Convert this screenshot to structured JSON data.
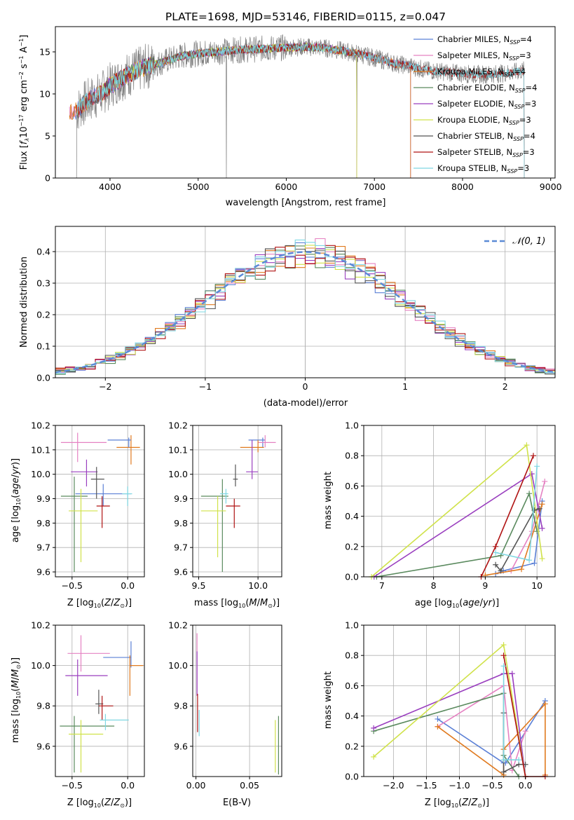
{
  "figure": {
    "title": "PLATE=1698, MJD=53146, FIBERID=0115, z=0.047"
  },
  "colors": {
    "Chabrier MILES": "#5b80d6",
    "Salpeter MILES": "#e582c2",
    "Kroupa MILES": "#e07a1f",
    "Chabrier ELODIE": "#5a8a5e",
    "Salpeter ELODIE": "#9a3fbf",
    "Kroupa ELODIE": "#d0e24a",
    "Chabrier STELIB": "#555555",
    "Salpeter STELIB": "#b01313",
    "Kroupa STELIB": "#7fd7e2",
    "data": "#808080",
    "normal": "#5b8bd6"
  },
  "chart_data": [
    {
      "type": "line",
      "panel": "spectrum",
      "xlabel": "wavelength [Angstrom, rest frame]",
      "ylabel": "Flux [f_λ 10^-17 erg cm^-2 s^-1 A^-1]",
      "xlim": [
        3380,
        9050
      ],
      "ylim": [
        0,
        18
      ],
      "xticks": [
        4000,
        5000,
        6000,
        7000,
        8000,
        9000
      ],
      "yticks": [
        0,
        5,
        10,
        15
      ],
      "legend_position": "upper-right",
      "legend": [
        "Chabrier MILES, N_SSP=4",
        "Salpeter MILES, N_SSP=3",
        "Kroupa MILES, N_SSP=4",
        "Chabrier ELODIE, N_SSP=4",
        "Salpeter ELODIE, N_SSP=3",
        "Kroupa ELODIE, N_SSP=3",
        "Chabrier STELIB, N_SSP=4",
        "Salpeter STELIB, N_SSP=3",
        "Kroupa STELIB, N_SSP=3"
      ],
      "continuum": [
        [
          3620,
          8
        ],
        [
          3700,
          8.8
        ],
        [
          3800,
          9.5
        ],
        [
          3900,
          10
        ],
        [
          4000,
          11
        ],
        [
          4200,
          12.3
        ],
        [
          4400,
          13.2
        ],
        [
          4600,
          13.8
        ],
        [
          4800,
          14.5
        ],
        [
          5000,
          14.8
        ],
        [
          5200,
          15
        ],
        [
          5400,
          15.2
        ],
        [
          5600,
          15.3
        ],
        [
          5800,
          15.4
        ],
        [
          6000,
          15.5
        ],
        [
          6200,
          15.6
        ],
        [
          6400,
          15.5
        ],
        [
          6600,
          15.2
        ],
        [
          6800,
          14.8
        ],
        [
          7000,
          14.3
        ],
        [
          7200,
          13.7
        ],
        [
          7400,
          13.3
        ],
        [
          7600,
          12.8
        ],
        [
          7800,
          12.6
        ],
        [
          8000,
          12.4
        ],
        [
          8200,
          12.3
        ],
        [
          8400,
          12.4
        ],
        [
          8600,
          12.6
        ],
        [
          8700,
          12.8
        ]
      ],
      "model_ranges": {
        "MILES": [
          3540,
          7410
        ],
        "ELODIE": [
          3900,
          6800
        ],
        "STELIB": [
          3620,
          8700
        ]
      },
      "data_dropouts": [
        3620,
        5320,
        6800
      ]
    },
    {
      "type": "histogram",
      "panel": "residuals",
      "xlabel": "(data-model)/error",
      "ylabel": "Normed distribution",
      "xlim": [
        -2.5,
        2.5
      ],
      "ylim": [
        0,
        0.48
      ],
      "xticks": [
        -2,
        -1,
        0,
        1,
        2
      ],
      "yticks": [
        0.0,
        0.1,
        0.2,
        0.3,
        0.4
      ],
      "legend": [
        "𝒩(0, 1)"
      ],
      "legend_position": "upper-right",
      "bin_width": 0.1
    },
    {
      "type": "scatter",
      "panel": "age-vs-Z",
      "xlabel": "Z [log10(Z/Z⊙)]",
      "ylabel": "age  [log10(age/yr)]",
      "xlim": [
        -0.65,
        0.15
      ],
      "ylim": [
        9.58,
        10.2
      ],
      "xticks": [
        -0.5,
        0.0
      ],
      "yticks": [
        9.6,
        9.7,
        9.8,
        9.9,
        10.0,
        10.1,
        10.2
      ],
      "points": [
        {
          "model": "Chabrier MILES",
          "x": -0.22,
          "y": 9.92,
          "xerr": [
            0.25,
            0.25
          ],
          "yerr": [
            0.05,
            0.04
          ]
        },
        {
          "model": "Salpeter MILES",
          "x": -0.45,
          "y": 10.13,
          "xerr": [
            0.15,
            0.26
          ],
          "yerr": [
            0.08,
            0.04
          ]
        },
        {
          "model": "Kroupa MILES",
          "x": 0.03,
          "y": 10.11,
          "xerr": [
            0.13,
            0.08
          ],
          "yerr": [
            0.07,
            0.05
          ]
        },
        {
          "model": "Chabrier ELODIE",
          "x": -0.48,
          "y": 9.91,
          "xerr": [
            0.12,
            0.12
          ],
          "yerr": [
            0.31,
            0.08
          ]
        },
        {
          "model": "Salpeter ELODIE",
          "x": -0.37,
          "y": 10.01,
          "xerr": [
            0.14,
            0.1
          ],
          "yerr": [
            0.06,
            0.05
          ]
        },
        {
          "model": "Kroupa ELODIE",
          "x": -0.42,
          "y": 9.85,
          "xerr": [
            0.11,
            0.15
          ],
          "yerr": [
            0.21,
            0.09
          ]
        },
        {
          "model": "Chabrier STELIB",
          "x": -0.28,
          "y": 9.98,
          "xerr": [
            0.05,
            0.07
          ],
          "yerr": [
            0.08,
            0.05
          ]
        },
        {
          "model": "Salpeter STELIB",
          "x": -0.23,
          "y": 9.87,
          "xerr": [
            0.05,
            0.07
          ],
          "yerr": [
            0.09,
            0.04
          ]
        },
        {
          "model": "Kroupa STELIB",
          "x": 0.0,
          "y": 9.92,
          "xerr": [
            0.05,
            0.04
          ],
          "yerr": [
            0.05,
            0.03
          ]
        },
        {
          "model": "Chabrier MILES",
          "x": 0.01,
          "y": 10.14,
          "xerr": [
            0.19,
            0.02
          ],
          "yerr": [
            0.03,
            0.01
          ]
        }
      ]
    },
    {
      "type": "scatter",
      "panel": "age-vs-mass",
      "xlabel": "mass [log10(M/M⊙)]",
      "ylabel": "",
      "xlim": [
        9.45,
        10.2
      ],
      "ylim": [
        9.58,
        10.2
      ],
      "xticks": [
        9.5,
        10.0
      ],
      "yticks": [
        9.6,
        9.7,
        9.8,
        9.9,
        10.0,
        10.1,
        10.2
      ],
      "points": [
        {
          "model": "Chabrier MILES",
          "x": 10.04,
          "y": 10.14,
          "xerr": [
            0.12,
            0.02
          ],
          "yerr": [
            0.03,
            0.01
          ]
        },
        {
          "model": "Salpeter MILES",
          "x": 10.06,
          "y": 10.13,
          "xerr": [
            0.06,
            0.09
          ],
          "yerr": [
            0.02,
            0.03
          ]
        },
        {
          "model": "Kroupa MILES",
          "x": 10.0,
          "y": 10.11,
          "xerr": [
            0.15,
            0.05
          ],
          "yerr": [
            0.02,
            0.03
          ]
        },
        {
          "model": "Chabrier ELODIE",
          "x": 9.7,
          "y": 9.91,
          "xerr": [
            0.18,
            0.05
          ],
          "yerr": [
            0.31,
            0.07
          ]
        },
        {
          "model": "Salpeter ELODIE",
          "x": 9.95,
          "y": 10.01,
          "xerr": [
            0.05,
            0.05
          ],
          "yerr": [
            0.03,
            0.13
          ]
        },
        {
          "model": "Kroupa ELODIE",
          "x": 9.66,
          "y": 9.85,
          "xerr": [
            0.14,
            0.07
          ],
          "yerr": [
            0.19,
            0.06
          ]
        },
        {
          "model": "Chabrier STELIB",
          "x": 9.81,
          "y": 9.98,
          "xerr": [
            0.02,
            0.02
          ],
          "yerr": [
            0.03,
            0.06
          ]
        },
        {
          "model": "Salpeter STELIB",
          "x": 9.8,
          "y": 9.87,
          "xerr": [
            0.07,
            0.05
          ],
          "yerr": [
            0.09,
            0.03
          ]
        },
        {
          "model": "Kroupa STELIB",
          "x": 9.73,
          "y": 9.92,
          "xerr": [
            0.05,
            0.02
          ],
          "yerr": [
            0.04,
            0.02
          ]
        }
      ]
    },
    {
      "type": "line",
      "panel": "mass-weight-vs-age",
      "xlabel": "age  [log10(age/yr)]",
      "ylabel": "mass weight",
      "xlim": [
        6.65,
        10.35
      ],
      "ylim": [
        0,
        1.0
      ],
      "xticks": [
        7,
        8,
        9,
        10
      ],
      "yticks": [
        0.0,
        0.2,
        0.4,
        0.6,
        0.8,
        1.0
      ],
      "series": [
        {
          "model": "Chabrier MILES",
          "x": [
            9.2,
            9.35,
            9.95,
            10.1
          ],
          "y": [
            0.02,
            0.04,
            0.09,
            0.5
          ]
        },
        {
          "model": "Salpeter MILES",
          "x": [
            9.5,
            9.9,
            10.15
          ],
          "y": [
            0.04,
            0.3,
            0.63
          ]
        },
        {
          "model": "Kroupa MILES",
          "x": [
            9.0,
            9.7,
            10.1
          ],
          "y": [
            0.01,
            0.05,
            0.48
          ]
        },
        {
          "model": "Chabrier ELODIE",
          "x": [
            6.9,
            9.3,
            9.85,
            10.0
          ],
          "y": [
            0.0,
            0.14,
            0.55,
            0.3
          ]
        },
        {
          "model": "Salpeter ELODIE",
          "x": [
            6.85,
            9.9,
            10.1
          ],
          "y": [
            0.0,
            0.68,
            0.32
          ]
        },
        {
          "model": "Kroupa ELODIE",
          "x": [
            6.8,
            9.8,
            10.1
          ],
          "y": [
            0.0,
            0.87,
            0.12
          ]
        },
        {
          "model": "Chabrier STELIB",
          "x": [
            9.2,
            9.3,
            9.95,
            10.05
          ],
          "y": [
            0.08,
            0.04,
            0.44,
            0.45
          ]
        },
        {
          "model": "Salpeter STELIB",
          "x": [
            8.92,
            9.2,
            9.93
          ],
          "y": [
            0.0,
            0.2,
            0.8
          ]
        },
        {
          "model": "Kroupa STELIB",
          "x": [
            9.2,
            9.85,
            10.0
          ],
          "y": [
            0.16,
            0.11,
            0.73
          ]
        }
      ]
    },
    {
      "type": "scatter",
      "panel": "mass-vs-Z",
      "xlabel": "Z [log10(Z/Z⊙)]",
      "ylabel": "mass [log10(M/M⊙)]",
      "xlim": [
        -0.65,
        0.15
      ],
      "ylim": [
        9.45,
        10.2
      ],
      "xticks": [
        -0.5,
        0.0
      ],
      "yticks": [
        9.6,
        9.8,
        10.0,
        10.2
      ],
      "points": [
        {
          "model": "Chabrier MILES",
          "x": 0.03,
          "y": 10.04,
          "xerr": [
            0.25,
            0.0
          ],
          "yerr": [
            0.05,
            0.08
          ]
        },
        {
          "model": "Salpeter MILES",
          "x": -0.42,
          "y": 10.06,
          "xerr": [
            0.12,
            0.26
          ],
          "yerr": [
            0.09,
            0.09
          ]
        },
        {
          "model": "Kroupa MILES",
          "x": 0.02,
          "y": 10.0,
          "xerr": [
            0.0,
            0.12
          ],
          "yerr": [
            0.15,
            0.05
          ]
        },
        {
          "model": "Chabrier ELODIE",
          "x": -0.48,
          "y": 9.7,
          "xerr": [
            0.13,
            0.36
          ],
          "yerr": [
            0.23,
            0.05
          ]
        },
        {
          "model": "Salpeter ELODIE",
          "x": -0.45,
          "y": 9.95,
          "xerr": [
            0.11,
            0.27
          ],
          "yerr": [
            0.1,
            0.08
          ]
        },
        {
          "model": "Kroupa ELODIE",
          "x": -0.42,
          "y": 9.66,
          "xerr": [
            0.11,
            0.2
          ],
          "yerr": [
            0.19,
            0.07
          ]
        },
        {
          "model": "Chabrier STELIB",
          "x": -0.26,
          "y": 9.81,
          "xerr": [
            0.03,
            0.04
          ],
          "yerr": [
            0.05,
            0.07
          ]
        },
        {
          "model": "Salpeter STELIB",
          "x": -0.23,
          "y": 9.8,
          "xerr": [
            0.03,
            0.1
          ],
          "yerr": [
            0.07,
            0.05
          ]
        },
        {
          "model": "Kroupa STELIB",
          "x": -0.2,
          "y": 9.73,
          "xerr": [
            0.05,
            0.21
          ],
          "yerr": [
            0.05,
            0.03
          ]
        }
      ]
    },
    {
      "type": "scatter",
      "panel": "mass-vs-EBV",
      "xlabel": "E(B-V)",
      "ylabel": "",
      "xlim": [
        -0.003,
        0.08
      ],
      "ylim": [
        9.45,
        10.2
      ],
      "xticks": [
        0.0,
        0.05
      ],
      "yticks": [
        9.6,
        9.8,
        10.0,
        10.2
      ],
      "points": [
        {
          "model": "Salpeter MILES",
          "x": 0.001,
          "y": 10.0,
          "yerr": [
            0.14,
            0.16
          ]
        },
        {
          "model": "Salpeter ELODIE",
          "x": 0.001,
          "y": 9.95,
          "yerr": [
            0.1,
            0.12
          ]
        },
        {
          "model": "Salpeter STELIB",
          "x": 0.0015,
          "y": 9.8,
          "yerr": [
            0.13,
            0.06
          ]
        },
        {
          "model": "Kroupa STELIB",
          "x": 0.003,
          "y": 9.72,
          "yerr": [
            0.07,
            0.06
          ]
        },
        {
          "model": "Kroupa ELODIE",
          "x": 0.074,
          "y": 9.6,
          "yerr": [
            0.13,
            0.13
          ]
        },
        {
          "model": "Chabrier ELODIE",
          "x": 0.077,
          "y": 9.6,
          "yerr": [
            0.14,
            0.15
          ]
        }
      ]
    },
    {
      "type": "line",
      "panel": "mass-weight-vs-Z",
      "xlabel": "Z [log10(Z/Z⊙)]",
      "ylabel": "mass weight",
      "xlim": [
        -2.45,
        0.45
      ],
      "ylim": [
        0,
        1.0
      ],
      "xticks": [
        -2.0,
        -1.5,
        -1.0,
        -0.5,
        0.0
      ],
      "yticks": [
        0.0,
        0.2,
        0.4,
        0.6,
        0.8,
        1.0
      ],
      "series": [
        {
          "model": "Chabrier MILES",
          "x": [
            -1.33,
            -0.33,
            -0.3,
            0.3
          ],
          "y": [
            0.38,
            0.09,
            0.09,
            0.5
          ]
        },
        {
          "model": "Salpeter MILES",
          "x": [
            -1.33,
            -0.33,
            -0.2,
            0.0
          ],
          "y": [
            0.33,
            0.6,
            0.04,
            0.3
          ]
        },
        {
          "model": "Kroupa MILES",
          "x": [
            -1.33,
            -0.33,
            -0.33,
            0.3,
            0.3
          ],
          "y": [
            0.33,
            0.01,
            0.18,
            0.48,
            0.01
          ]
        },
        {
          "model": "Chabrier ELODIE",
          "x": [
            -2.3,
            -0.33,
            -0.33,
            -0.1
          ],
          "y": [
            0.3,
            0.55,
            0.14,
            0.0
          ]
        },
        {
          "model": "Salpeter ELODIE",
          "x": [
            -2.3,
            -0.33,
            -0.2,
            0.0
          ],
          "y": [
            0.32,
            0.68,
            0.68,
            0.0
          ]
        },
        {
          "model": "Kroupa ELODIE",
          "x": [
            -2.3,
            -0.33,
            0.0
          ],
          "y": [
            0.13,
            0.87,
            0.0
          ]
        },
        {
          "model": "Chabrier STELIB",
          "x": [
            -0.33,
            -0.33,
            -0.1,
            0.0
          ],
          "y": [
            0.42,
            0.03,
            0.08,
            0.08
          ]
        },
        {
          "model": "Salpeter STELIB",
          "x": [
            -0.33,
            0.0,
            0.3
          ],
          "y": [
            0.8,
            0.0,
            0.0
          ]
        },
        {
          "model": "Kroupa STELIB",
          "x": [
            -0.33,
            -0.33,
            -0.1
          ],
          "y": [
            0.73,
            0.11,
            0.11
          ]
        }
      ]
    }
  ]
}
